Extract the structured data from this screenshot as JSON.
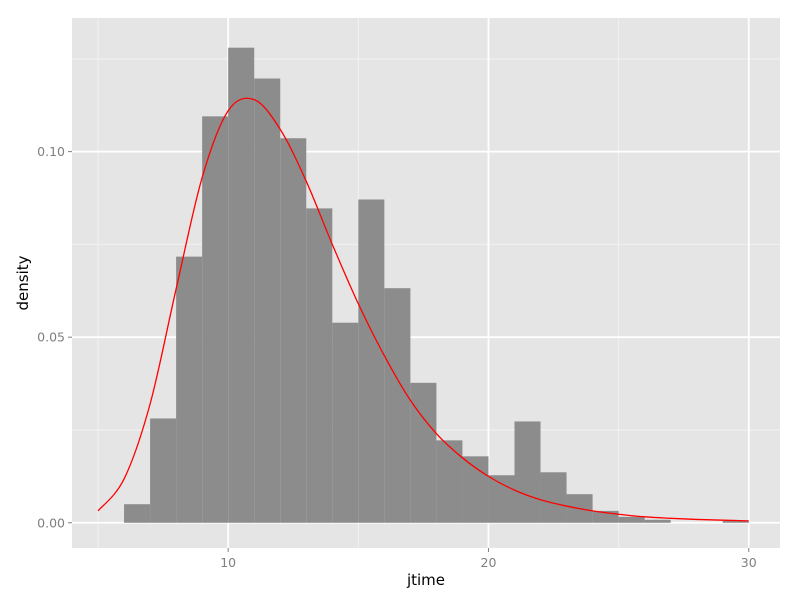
{
  "chart_data": {
    "type": "bar",
    "title": "",
    "xlabel": "jtime",
    "ylabel": "density",
    "xlim": [
      4.0,
      31.2
    ],
    "ylim": [
      -0.0068,
      0.136
    ],
    "x_ticks": [
      10,
      20,
      30
    ],
    "x_tick_labels": [
      "10",
      "20",
      "30"
    ],
    "y_ticks": [
      0.0,
      0.05,
      0.1
    ],
    "y_tick_labels": [
      "0.00",
      "0.05",
      "0.10"
    ],
    "grid": true,
    "legend": "none",
    "colors": {
      "panel_background": "#e5e5e5",
      "grid_major": "#ffffff",
      "grid_minor": "#f2f2f2",
      "bar_fill": "#8c8c8c",
      "curve": "#ff0000"
    },
    "histogram": {
      "bin_width": 1,
      "bins": [
        {
          "x0": 6,
          "x1": 7,
          "density": 0.005
        },
        {
          "x0": 7,
          "x1": 8,
          "density": 0.0281
        },
        {
          "x0": 8,
          "x1": 9,
          "density": 0.0717
        },
        {
          "x0": 9,
          "x1": 10,
          "density": 0.1095
        },
        {
          "x0": 10,
          "x1": 11,
          "density": 0.128
        },
        {
          "x0": 11,
          "x1": 12,
          "density": 0.1197
        },
        {
          "x0": 12,
          "x1": 13,
          "density": 0.1036
        },
        {
          "x0": 13,
          "x1": 14,
          "density": 0.0847
        },
        {
          "x0": 14,
          "x1": 15,
          "density": 0.0539
        },
        {
          "x0": 15,
          "x1": 16,
          "density": 0.0871
        },
        {
          "x0": 16,
          "x1": 17,
          "density": 0.0632
        },
        {
          "x0": 17,
          "x1": 18,
          "density": 0.0377
        },
        {
          "x0": 18,
          "x1": 19,
          "density": 0.0222
        },
        {
          "x0": 19,
          "x1": 20,
          "density": 0.0179
        },
        {
          "x0": 20,
          "x1": 21,
          "density": 0.0128
        },
        {
          "x0": 21,
          "x1": 22,
          "density": 0.0273
        },
        {
          "x0": 22,
          "x1": 23,
          "density": 0.0136
        },
        {
          "x0": 23,
          "x1": 24,
          "density": 0.0077
        },
        {
          "x0": 24,
          "x1": 25,
          "density": 0.0032
        },
        {
          "x0": 25,
          "x1": 26,
          "density": 0.0016
        },
        {
          "x0": 26,
          "x1": 27,
          "density": 0.0008
        },
        {
          "x0": 29,
          "x1": 30,
          "density": 0.0005
        }
      ]
    },
    "density_curve": {
      "x": [
        5,
        6,
        7,
        8,
        9,
        10,
        11,
        12,
        13,
        14,
        15,
        16,
        17,
        18,
        19,
        20,
        21,
        22,
        23,
        24,
        25,
        26,
        27,
        28,
        29,
        30
      ],
      "y": [
        0.0032,
        0.0118,
        0.032,
        0.063,
        0.093,
        0.111,
        0.114,
        0.106,
        0.092,
        0.075,
        0.059,
        0.045,
        0.033,
        0.024,
        0.0175,
        0.0125,
        0.0088,
        0.0062,
        0.0045,
        0.0032,
        0.0023,
        0.0016,
        0.0012,
        0.0009,
        0.0007,
        0.0005
      ]
    }
  }
}
